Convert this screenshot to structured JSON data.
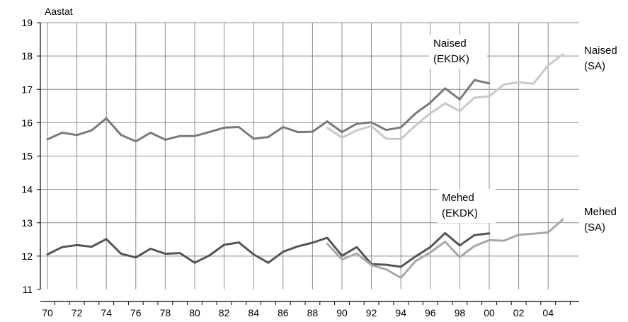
{
  "chart_data": {
    "type": "line",
    "ylabel": "Aastat",
    "ylim": [
      11,
      19
    ],
    "yticks": [
      11,
      12,
      13,
      14,
      15,
      16,
      17,
      18,
      19
    ],
    "xlim": [
      1970,
      2005
    ],
    "xtick_labels": [
      "70",
      "72",
      "74",
      "76",
      "78",
      "80",
      "82",
      "84",
      "86",
      "88",
      "90",
      "92",
      "94",
      "96",
      "98",
      "00",
      "02",
      "04"
    ],
    "grid": true,
    "colors": {
      "naised_ekdk": "#7a7a7a",
      "naised_sa": "#c8c8c8",
      "mehed_ekdk": "#555555",
      "mehed_sa": "#a8a8a8"
    },
    "annotations": {
      "naised_ekdk": [
        "Naised",
        "(EKDK)"
      ],
      "naised_sa": [
        "Naised",
        "(SA)"
      ],
      "mehed_ekdk": [
        "Mehed",
        "(EKDK)"
      ],
      "mehed_sa": [
        "Mehed",
        "(SA)"
      ]
    },
    "series": [
      {
        "key": "naised_ekdk",
        "x": [
          1970,
          1971,
          1972,
          1973,
          1974,
          1975,
          1976,
          1977,
          1978,
          1979,
          1980,
          1981,
          1982,
          1983,
          1984,
          1985,
          1986,
          1987,
          1988,
          1989,
          1990,
          1991,
          1992,
          1993,
          1994,
          1995,
          1996,
          1997,
          1998,
          1999,
          2000
        ],
        "values": [
          15.5,
          15.7,
          15.63,
          15.77,
          16.13,
          15.63,
          15.44,
          15.7,
          15.49,
          15.6,
          15.6,
          15.72,
          15.85,
          15.87,
          15.52,
          15.57,
          15.87,
          15.72,
          15.73,
          16.04,
          15.72,
          15.97,
          16.01,
          15.78,
          15.86,
          16.28,
          16.6,
          17.03,
          16.7,
          17.28,
          17.18
        ]
      },
      {
        "key": "naised_sa",
        "x": [
          1989,
          1990,
          1991,
          1992,
          1993,
          1994,
          1995,
          1996,
          1997,
          1998,
          1999,
          2000,
          2001,
          2002,
          2003,
          2004,
          2005
        ],
        "values": [
          15.85,
          15.55,
          15.77,
          15.9,
          15.52,
          15.51,
          15.92,
          16.28,
          16.58,
          16.35,
          16.75,
          16.79,
          17.15,
          17.21,
          17.17,
          17.72,
          18.05
        ]
      },
      {
        "key": "mehed_ekdk",
        "x": [
          1970,
          1971,
          1972,
          1973,
          1974,
          1975,
          1976,
          1977,
          1978,
          1979,
          1980,
          1981,
          1982,
          1983,
          1984,
          1985,
          1986,
          1987,
          1988,
          1989,
          1990,
          1991,
          1992,
          1993,
          1994,
          1995,
          1996,
          1997,
          1998,
          1999,
          2000
        ],
        "values": [
          12.05,
          12.27,
          12.33,
          12.28,
          12.51,
          12.07,
          11.96,
          12.22,
          12.07,
          12.09,
          11.8,
          12.02,
          12.34,
          12.41,
          12.05,
          11.8,
          12.13,
          12.29,
          12.4,
          12.55,
          12.01,
          12.27,
          11.76,
          11.74,
          11.68,
          11.99,
          12.27,
          12.69,
          12.32,
          12.63,
          12.68
        ]
      },
      {
        "key": "mehed_sa",
        "x": [
          1989,
          1990,
          1991,
          1992,
          1993,
          1994,
          1995,
          1996,
          1997,
          1998,
          1999,
          2000,
          2001,
          2002,
          2003,
          2004,
          2005
        ],
        "values": [
          12.37,
          11.9,
          12.08,
          11.73,
          11.6,
          11.35,
          11.85,
          12.11,
          12.43,
          11.97,
          12.3,
          12.48,
          12.46,
          12.64,
          12.67,
          12.71,
          13.1
        ]
      }
    ]
  }
}
